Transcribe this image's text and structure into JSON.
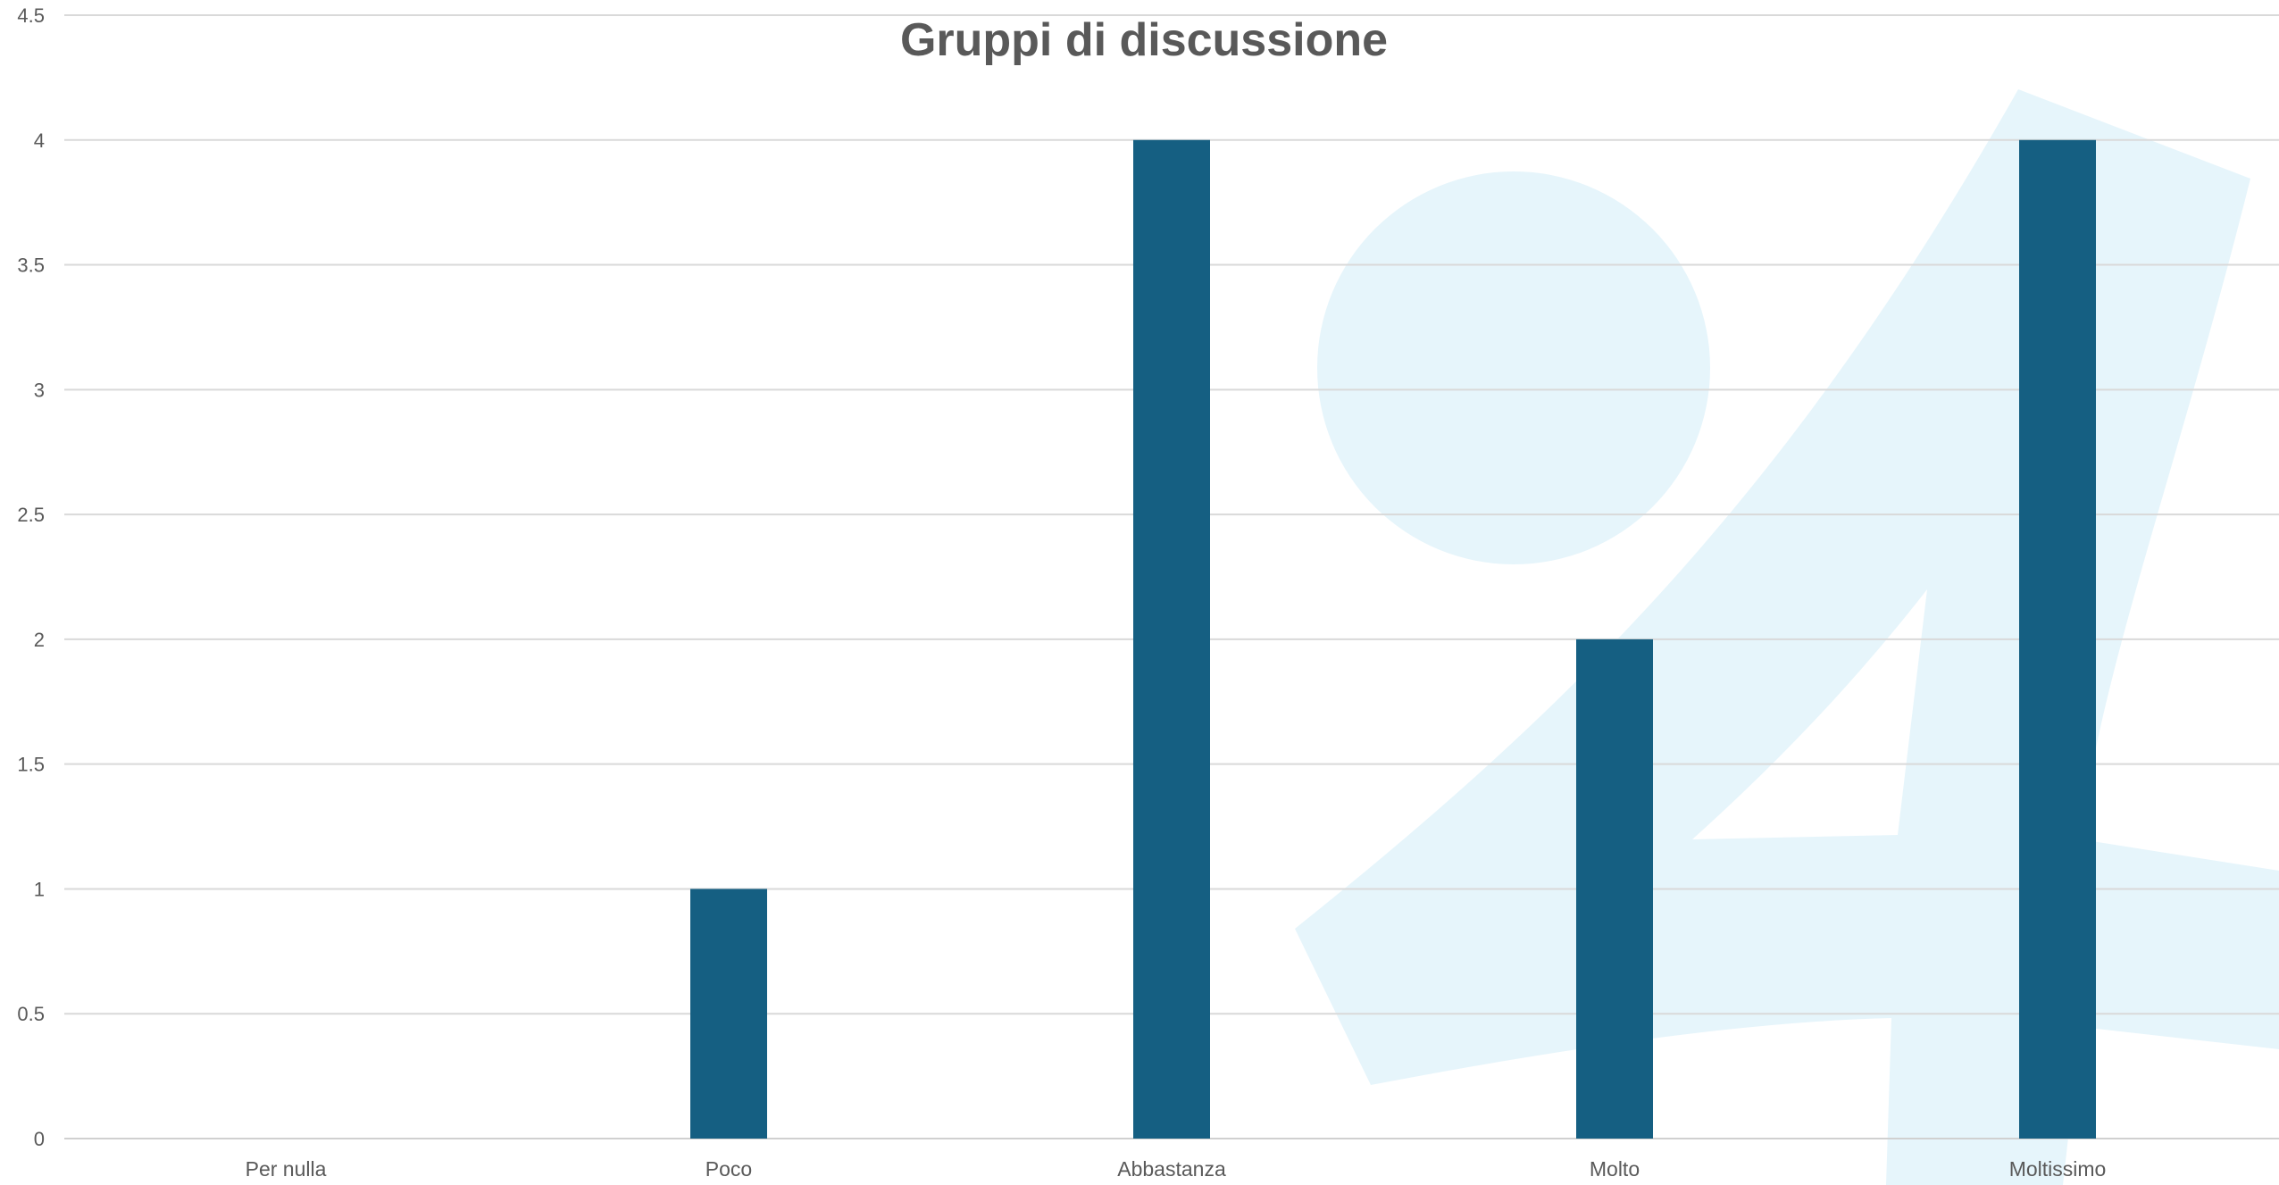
{
  "colors": {
    "bar": "#155f82",
    "gridline": "#d9d9d9",
    "axis_line": "#d0d0d0",
    "text": "#595959",
    "watermark": "#e6f5fb"
  },
  "watermark": {
    "icon": "logo-watermark"
  },
  "chart_data": {
    "type": "bar",
    "title": "Gruppi di discussione",
    "xlabel": "",
    "ylabel": "",
    "categories": [
      "Per nulla",
      "Poco",
      "Abbastanza",
      "Molto",
      "Moltissimo"
    ],
    "values": [
      0,
      1,
      4,
      2,
      4
    ],
    "ylim": [
      0,
      4.5
    ],
    "yticks": [
      "0",
      "0.5",
      "1",
      "1.5",
      "2",
      "2.5",
      "3",
      "3.5",
      "4",
      "4.5"
    ],
    "grid": true,
    "legend": "none"
  }
}
